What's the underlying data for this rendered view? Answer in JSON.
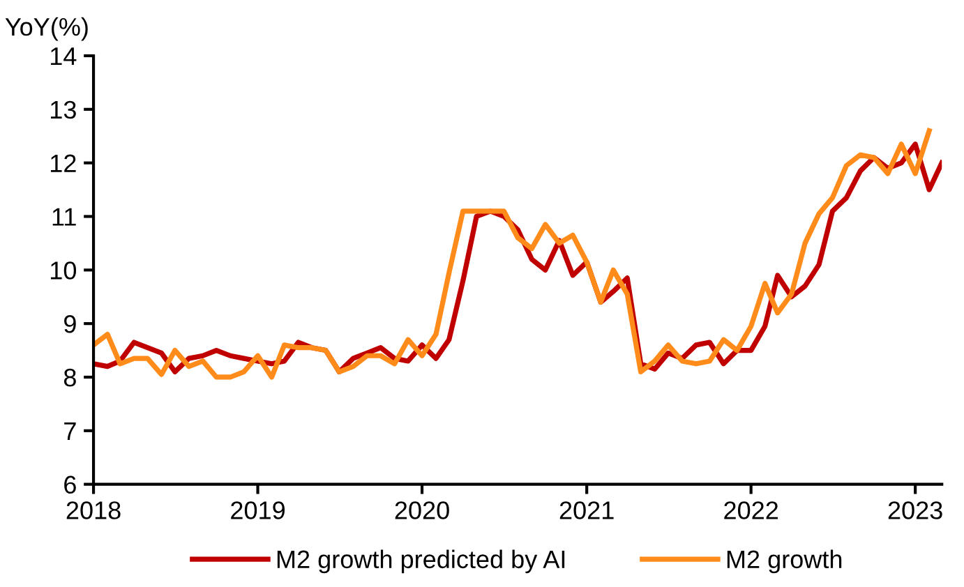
{
  "chart_data": {
    "type": "line",
    "ylabel": "YoY(%)",
    "x": [
      "2018-01",
      "2018-02",
      "2018-03",
      "2018-04",
      "2018-05",
      "2018-06",
      "2018-07",
      "2018-08",
      "2018-09",
      "2018-10",
      "2018-11",
      "2018-12",
      "2019-01",
      "2019-02",
      "2019-03",
      "2019-04",
      "2019-05",
      "2019-06",
      "2019-07",
      "2019-08",
      "2019-09",
      "2019-10",
      "2019-11",
      "2019-12",
      "2020-01",
      "2020-02",
      "2020-03",
      "2020-04",
      "2020-05",
      "2020-06",
      "2020-07",
      "2020-08",
      "2020-09",
      "2020-10",
      "2020-11",
      "2020-12",
      "2021-01",
      "2021-02",
      "2021-03",
      "2021-04",
      "2021-05",
      "2021-06",
      "2021-07",
      "2021-08",
      "2021-09",
      "2021-10",
      "2021-11",
      "2021-12",
      "2022-01",
      "2022-02",
      "2022-03",
      "2022-04",
      "2022-05",
      "2022-06",
      "2022-07",
      "2022-08",
      "2022-09",
      "2022-10",
      "2022-11",
      "2022-12",
      "2023-01",
      "2023-02",
      "2023-03"
    ],
    "series": [
      {
        "name": "M2 growth predicted by AI",
        "color": "#c00000",
        "values": [
          8.25,
          8.2,
          8.3,
          8.65,
          8.55,
          8.45,
          8.1,
          8.35,
          8.4,
          8.5,
          8.4,
          8.35,
          8.3,
          8.25,
          8.3,
          8.65,
          8.55,
          8.5,
          8.1,
          8.35,
          8.45,
          8.55,
          8.35,
          8.3,
          8.6,
          8.35,
          8.7,
          9.8,
          11.0,
          11.1,
          11.0,
          10.75,
          10.2,
          10.0,
          10.55,
          9.9,
          10.15,
          9.4,
          9.6,
          9.85,
          8.25,
          8.15,
          8.45,
          8.35,
          8.6,
          8.65,
          8.25,
          8.5,
          8.5,
          8.95,
          9.9,
          9.5,
          9.7,
          10.1,
          11.1,
          11.35,
          11.85,
          12.1,
          11.9,
          12.0,
          12.35,
          11.5,
          12.0
        ]
      },
      {
        "name": "M2 growth",
        "color": "#ff8c1a",
        "values": [
          8.6,
          8.8,
          8.25,
          8.35,
          8.35,
          8.05,
          8.5,
          8.2,
          8.3,
          8.0,
          8.0,
          8.1,
          8.4,
          8.0,
          8.6,
          8.55,
          8.55,
          8.5,
          8.1,
          8.2,
          8.4,
          8.4,
          8.25,
          8.7,
          8.4,
          8.8,
          9.95,
          11.1,
          11.1,
          11.1,
          11.1,
          10.6,
          10.4,
          10.85,
          10.5,
          10.65,
          10.15,
          9.4,
          10.0,
          9.55,
          8.1,
          8.3,
          8.6,
          8.3,
          8.25,
          8.3,
          8.7,
          8.5,
          8.95,
          9.75,
          9.2,
          9.55,
          10.5,
          11.05,
          11.35,
          11.95,
          12.15,
          12.1,
          11.8,
          12.35,
          11.8,
          12.6,
          null
        ]
      }
    ],
    "xlim": [
      "2018-01",
      "2023-03"
    ],
    "xticks": [
      {
        "value": "2018-01",
        "label": "2018"
      },
      {
        "value": "2019-01",
        "label": "2019"
      },
      {
        "value": "2020-01",
        "label": "2020"
      },
      {
        "value": "2021-01",
        "label": "2021"
      },
      {
        "value": "2022-01",
        "label": "2022"
      },
      {
        "value": "2023-01",
        "label": "2023"
      }
    ],
    "ylim": [
      6,
      14
    ],
    "yticks": [
      6,
      7,
      8,
      9,
      10,
      11,
      12,
      13,
      14
    ],
    "grid": false,
    "legend": "bottom",
    "marker": "none",
    "line_style": "solid"
  }
}
